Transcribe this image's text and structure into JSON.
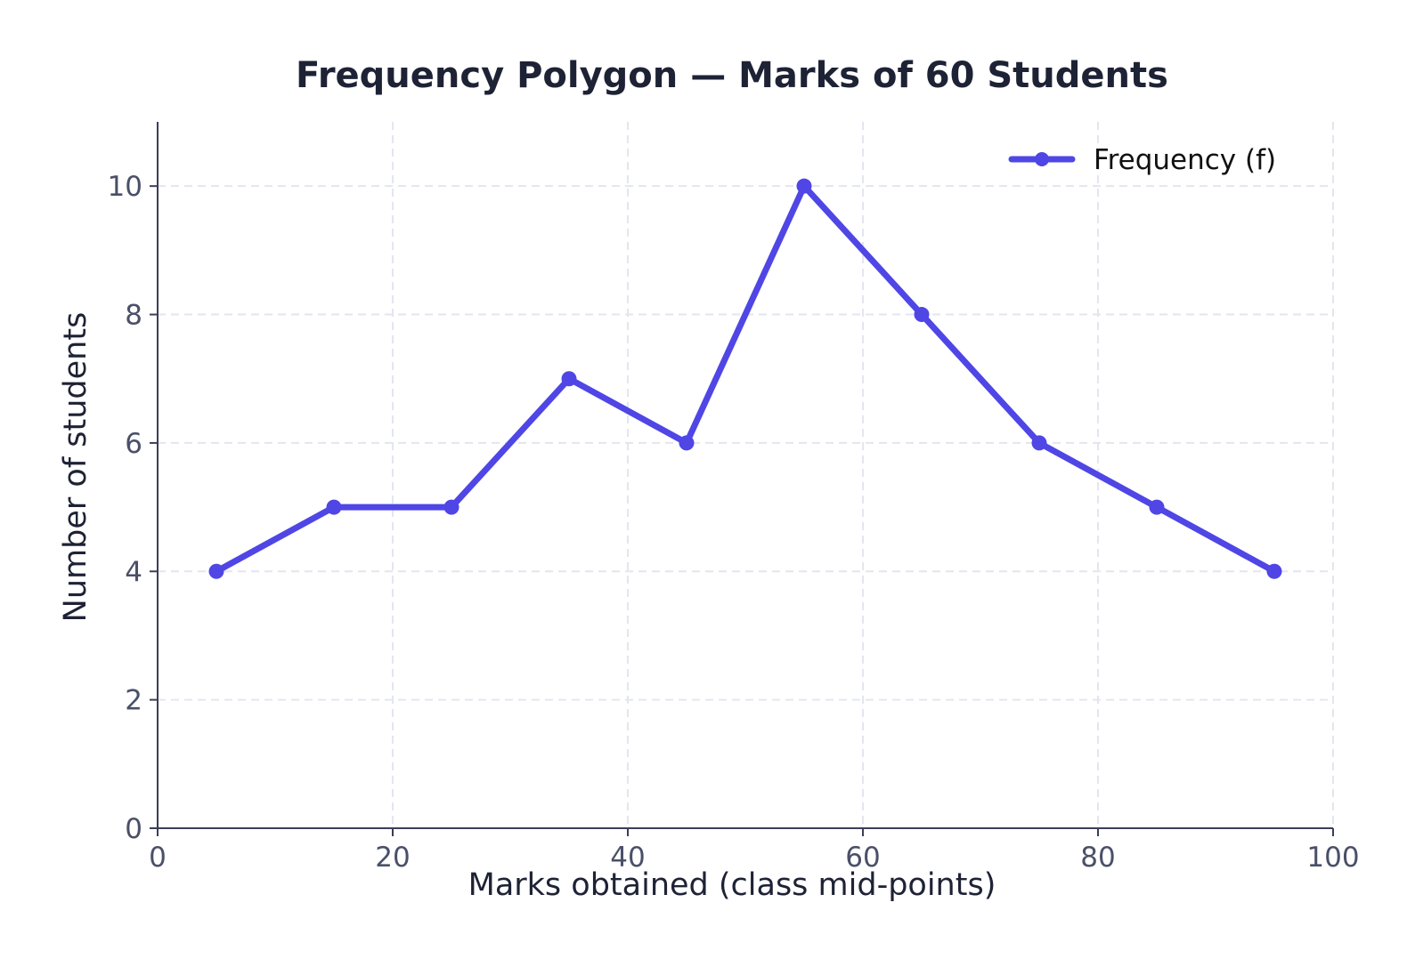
{
  "chart_data": {
    "type": "line",
    "title": "Frequency Polygon — Marks of 60 Students",
    "xlabel": "Marks obtained (class mid-points)",
    "ylabel": "Number of students",
    "xlim": [
      0,
      100
    ],
    "ylim": [
      0,
      11
    ],
    "x_ticks": [
      0,
      20,
      40,
      60,
      80,
      100
    ],
    "y_ticks": [
      0,
      2,
      4,
      6,
      8,
      10
    ],
    "x_tick_labels": [
      "0",
      "20",
      "40",
      "60",
      "80",
      "100"
    ],
    "y_tick_labels": [
      "0",
      "2",
      "4",
      "6",
      "8",
      "10"
    ],
    "grid": true,
    "legend_position": "top-right",
    "x": [
      5,
      15,
      25,
      35,
      45,
      55,
      65,
      75,
      85,
      95
    ],
    "series": [
      {
        "name": "Frequency (f)",
        "values": [
          4,
          5,
          5,
          7,
          6,
          10,
          8,
          6,
          5,
          4
        ],
        "color": "#4f46e5"
      }
    ],
    "colors": {
      "axis": "#3a3f55",
      "grid": "#e3e6f0"
    }
  }
}
